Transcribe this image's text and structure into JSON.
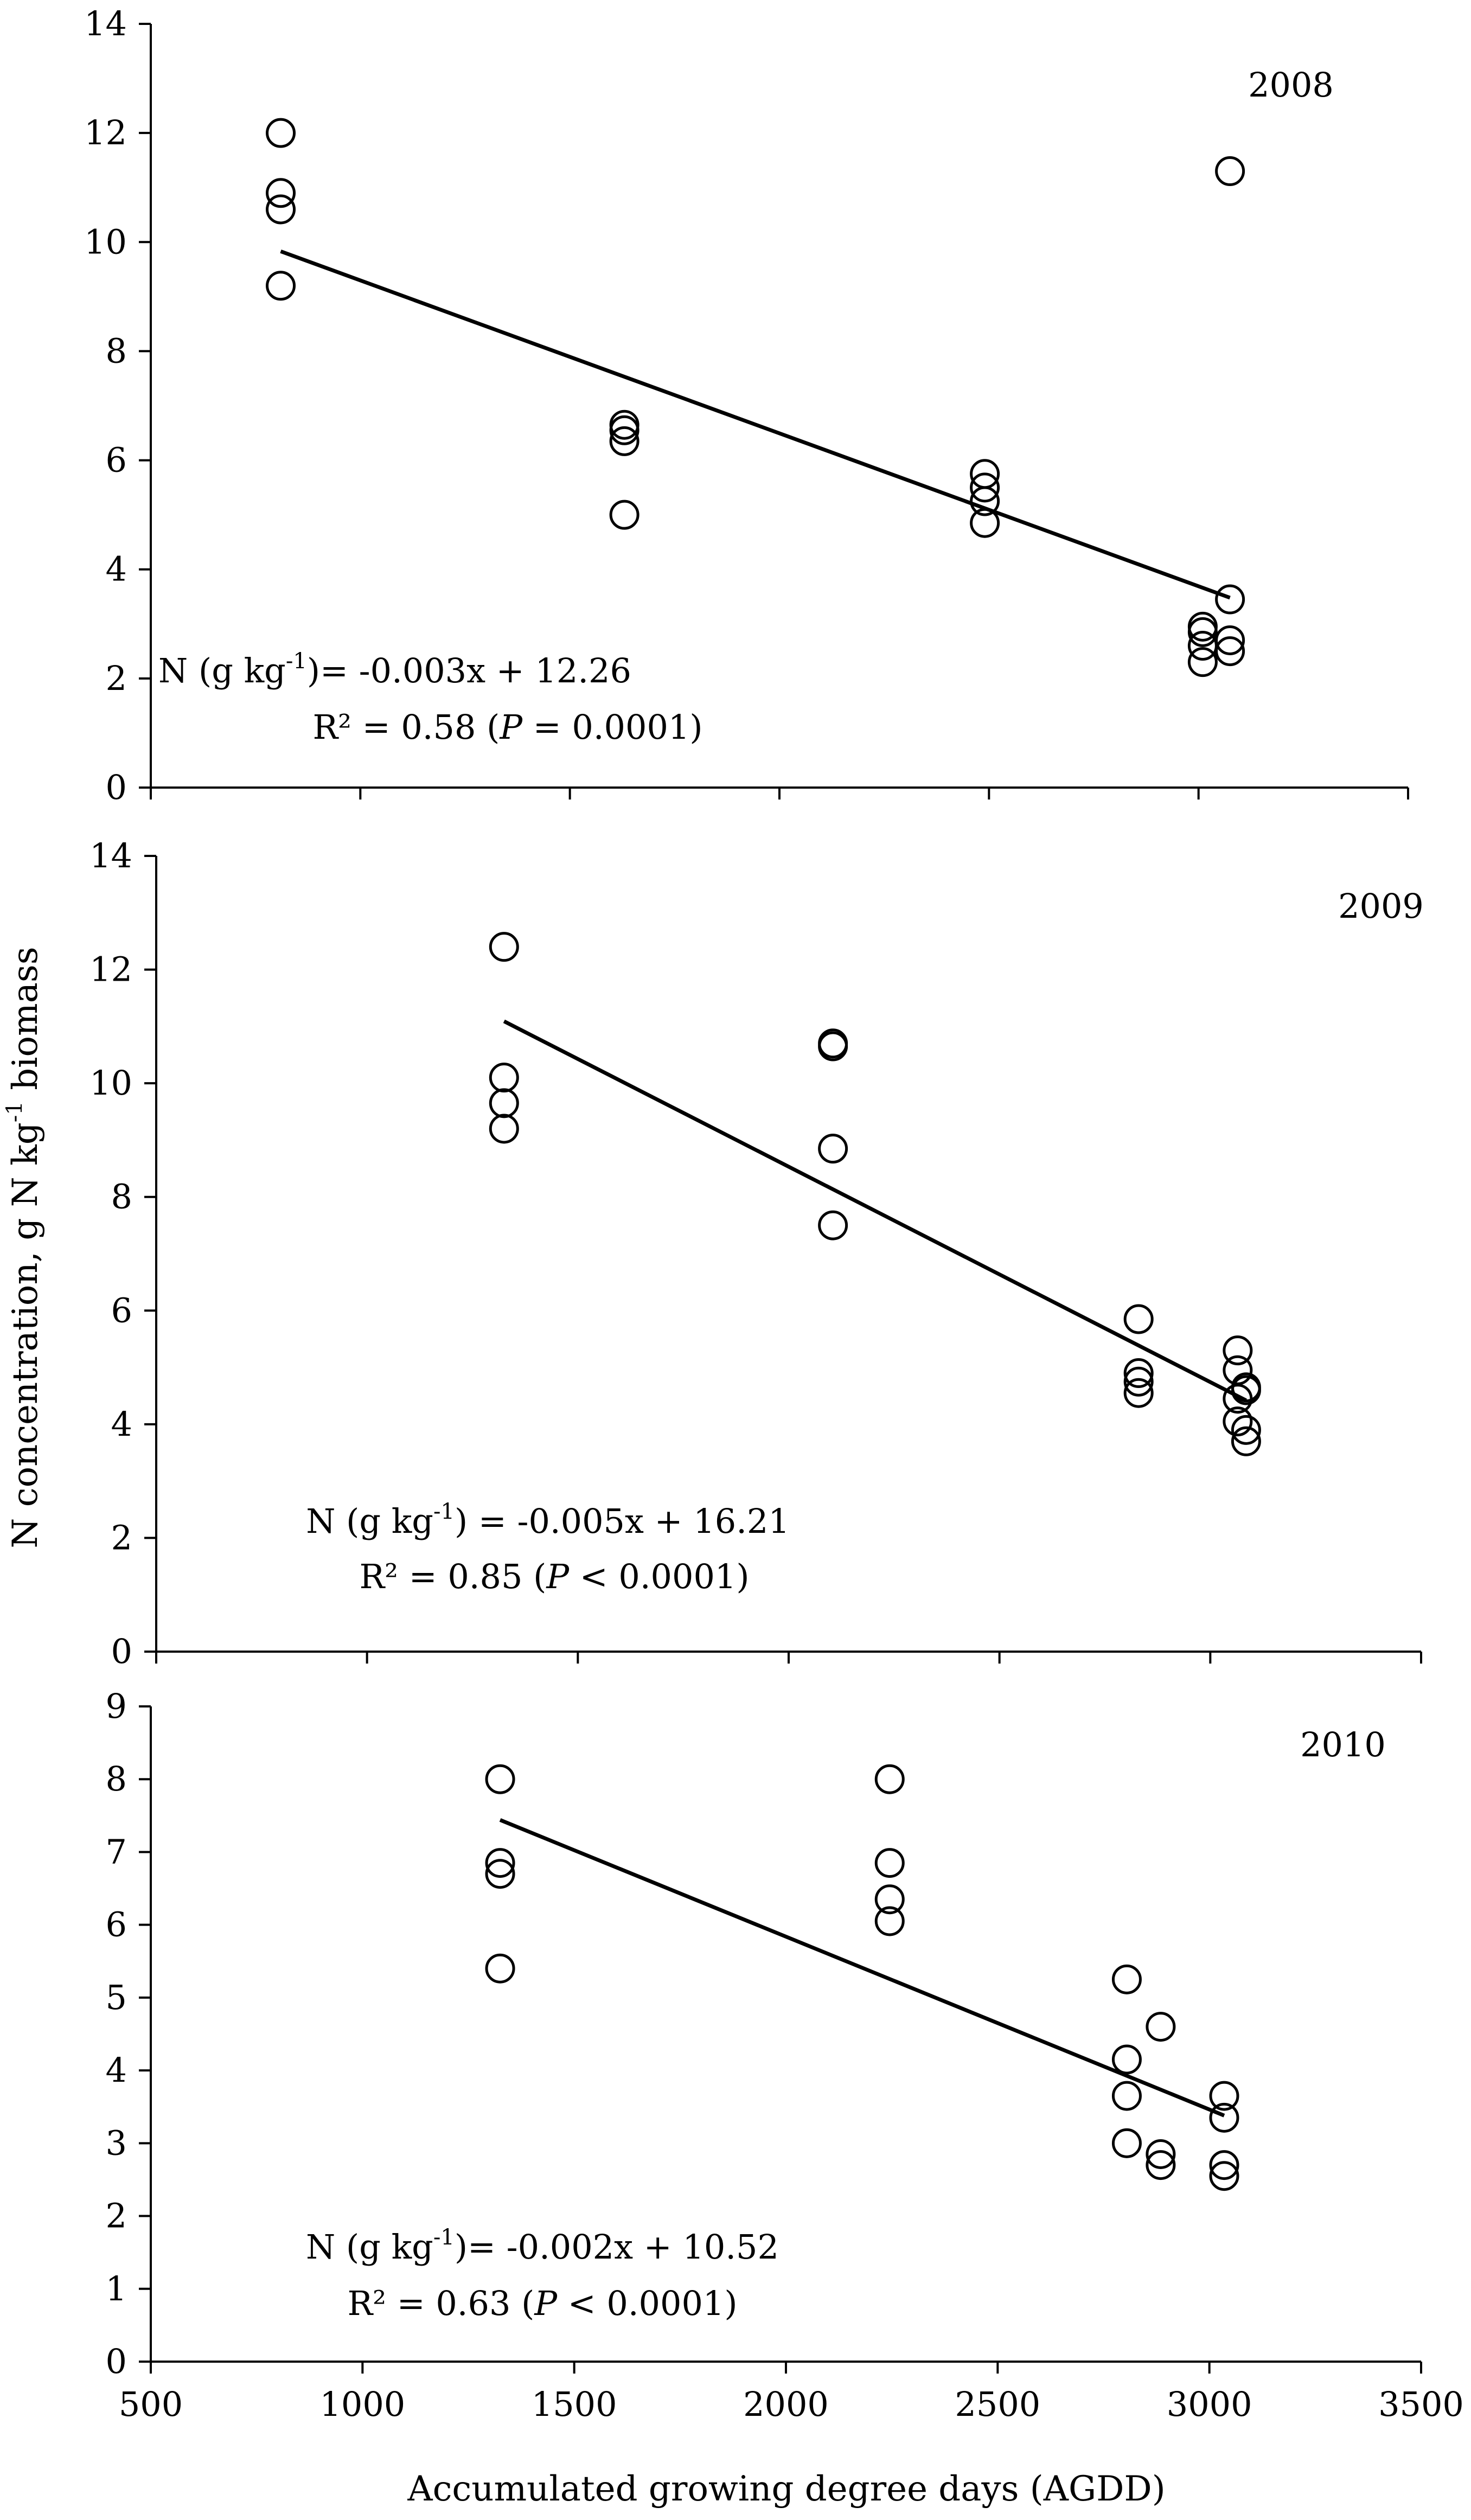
{
  "figure": {
    "xlabel": "Accumulated growing degree days (AGDD)",
    "ylabel": "N concentration, g N kg",
    "ylabel_sup": "-1",
    "ylabel_tail": " biomass",
    "x_ticks": [
      "500",
      "1000",
      "1500",
      "2000",
      "2500",
      "3000",
      "3500"
    ]
  },
  "chart_data": [
    {
      "type": "scatter",
      "title": "2008",
      "xlim": [
        500,
        3500
      ],
      "ylim": [
        0,
        14
      ],
      "y_ticks": [
        0,
        2,
        4,
        6,
        8,
        10,
        12,
        14
      ],
      "y_tick_labels": [
        "0",
        "2",
        "4",
        "6",
        "8",
        "10",
        "12",
        "14"
      ],
      "points": [
        {
          "x": 810,
          "y": 12.0
        },
        {
          "x": 810,
          "y": 10.9
        },
        {
          "x": 810,
          "y": 10.6
        },
        {
          "x": 810,
          "y": 9.2
        },
        {
          "x": 1630,
          "y": 6.65
        },
        {
          "x": 1630,
          "y": 6.55
        },
        {
          "x": 1630,
          "y": 6.35
        },
        {
          "x": 1630,
          "y": 5.0
        },
        {
          "x": 2490,
          "y": 5.75
        },
        {
          "x": 2490,
          "y": 5.5
        },
        {
          "x": 2490,
          "y": 5.25
        },
        {
          "x": 2490,
          "y": 4.85
        },
        {
          "x": 3010,
          "y": 2.95
        },
        {
          "x": 3010,
          "y": 2.85
        },
        {
          "x": 3010,
          "y": 2.6
        },
        {
          "x": 3010,
          "y": 2.3
        },
        {
          "x": 3075,
          "y": 11.3
        },
        {
          "x": 3075,
          "y": 3.45
        },
        {
          "x": 3075,
          "y": 2.7
        },
        {
          "x": 3075,
          "y": 2.5
        }
      ],
      "trendline": {
        "x": [
          810,
          3075
        ],
        "y": [
          9.83,
          3.48
        ]
      },
      "equation": {
        "prefix": "N (g kg",
        "sup": "-1",
        "suffix": ")= -0.003x + 12.26"
      },
      "r2": {
        "prefix": "R² = 0.58 (",
        "italic": "P",
        "suffix": " = 0.0001)"
      }
    },
    {
      "type": "scatter",
      "title": "2009",
      "xlim": [
        500,
        3500
      ],
      "ylim": [
        0,
        14
      ],
      "y_ticks": [
        0,
        2,
        4,
        6,
        8,
        10,
        12,
        14
      ],
      "y_tick_labels": [
        "0",
        "2",
        "4",
        "6",
        "8",
        "10",
        "12",
        "14"
      ],
      "points": [
        {
          "x": 1325,
          "y": 12.4
        },
        {
          "x": 1325,
          "y": 10.1
        },
        {
          "x": 1325,
          "y": 9.65
        },
        {
          "x": 1325,
          "y": 9.2
        },
        {
          "x": 2105,
          "y": 10.7
        },
        {
          "x": 2105,
          "y": 10.65
        },
        {
          "x": 2105,
          "y": 8.85
        },
        {
          "x": 2105,
          "y": 7.5
        },
        {
          "x": 2830,
          "y": 5.85
        },
        {
          "x": 2830,
          "y": 4.9
        },
        {
          "x": 2830,
          "y": 4.75
        },
        {
          "x": 2830,
          "y": 4.55
        },
        {
          "x": 3065,
          "y": 5.3
        },
        {
          "x": 3065,
          "y": 4.95
        },
        {
          "x": 3065,
          "y": 4.45
        },
        {
          "x": 3065,
          "y": 4.05
        },
        {
          "x": 3085,
          "y": 4.65
        },
        {
          "x": 3085,
          "y": 4.6
        },
        {
          "x": 3085,
          "y": 3.9
        },
        {
          "x": 3085,
          "y": 3.7
        }
      ],
      "trendline": {
        "x": [
          1325,
          3085
        ],
        "y": [
          11.09,
          4.42
        ]
      },
      "equation": {
        "prefix": "N (g kg",
        "sup": "-1",
        "suffix": ") = -0.005x + 16.21"
      },
      "r2": {
        "prefix": "R² = 0.85 (",
        "italic": "P",
        "suffix": " < 0.0001)"
      }
    },
    {
      "type": "scatter",
      "title": "2010",
      "xlim": [
        500,
        3500
      ],
      "ylim": [
        0,
        9
      ],
      "y_ticks": [
        0,
        1,
        2,
        3,
        4,
        5,
        6,
        7,
        8,
        9
      ],
      "y_tick_labels": [
        "0",
        "1",
        "2",
        "3",
        "4",
        "5",
        "6",
        "7",
        "8",
        "9"
      ],
      "points": [
        {
          "x": 1325,
          "y": 8.0
        },
        {
          "x": 1325,
          "y": 6.85
        },
        {
          "x": 1325,
          "y": 6.7
        },
        {
          "x": 1325,
          "y": 5.4
        },
        {
          "x": 2245,
          "y": 8.0
        },
        {
          "x": 2245,
          "y": 6.85
        },
        {
          "x": 2245,
          "y": 6.35
        },
        {
          "x": 2245,
          "y": 6.05
        },
        {
          "x": 2805,
          "y": 5.25
        },
        {
          "x": 2805,
          "y": 4.15
        },
        {
          "x": 2805,
          "y": 3.65
        },
        {
          "x": 2805,
          "y": 3.0
        },
        {
          "x": 2885,
          "y": 4.6
        },
        {
          "x": 2885,
          "y": 2.85
        },
        {
          "x": 2885,
          "y": 2.7
        },
        {
          "x": 3035,
          "y": 3.65
        },
        {
          "x": 3035,
          "y": 3.35
        },
        {
          "x": 3035,
          "y": 2.7
        },
        {
          "x": 3035,
          "y": 2.55
        }
      ],
      "trendline": {
        "x": [
          1325,
          3035
        ],
        "y": [
          7.44,
          3.38
        ]
      },
      "equation": {
        "prefix": "N (g kg",
        "sup": "-1",
        "suffix": ")= -0.002x + 10.52"
      },
      "r2": {
        "prefix": "R² = 0.63 (",
        "italic": "P",
        "suffix": " < 0.0001)"
      }
    }
  ]
}
